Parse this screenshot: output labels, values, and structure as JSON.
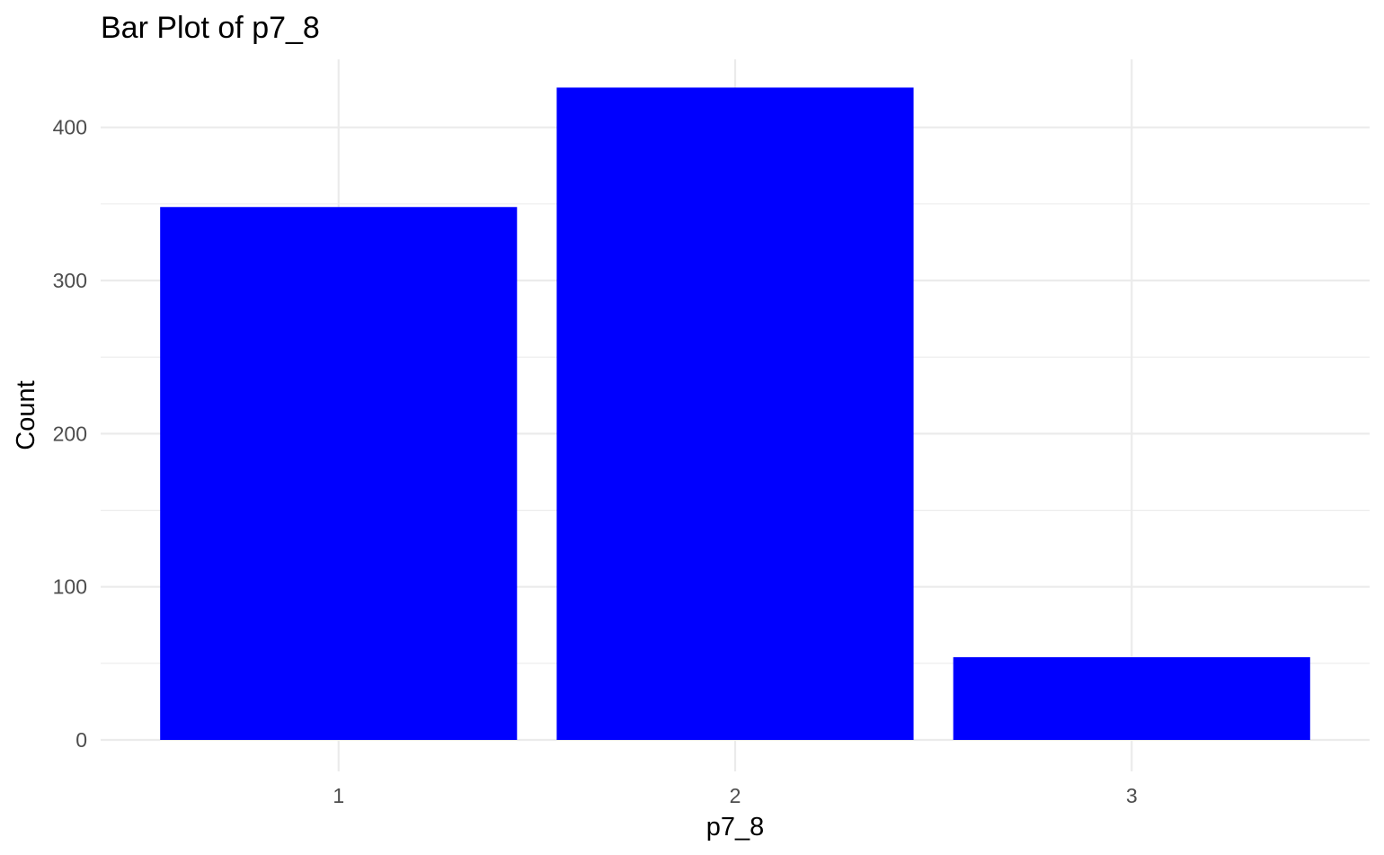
{
  "chart_data": {
    "type": "bar",
    "title": "Bar Plot of p7_8",
    "xlabel": "p7_8",
    "ylabel": "Count",
    "categories": [
      "1",
      "2",
      "3"
    ],
    "values": [
      348,
      426,
      54
    ],
    "ylim": [
      0,
      440
    ],
    "yticks": [
      0,
      100,
      200,
      300,
      400
    ],
    "grid": true,
    "legend": "none",
    "bar_color": "#0000ff",
    "grid_color": "#ebebeb",
    "background": "#ffffff"
  }
}
